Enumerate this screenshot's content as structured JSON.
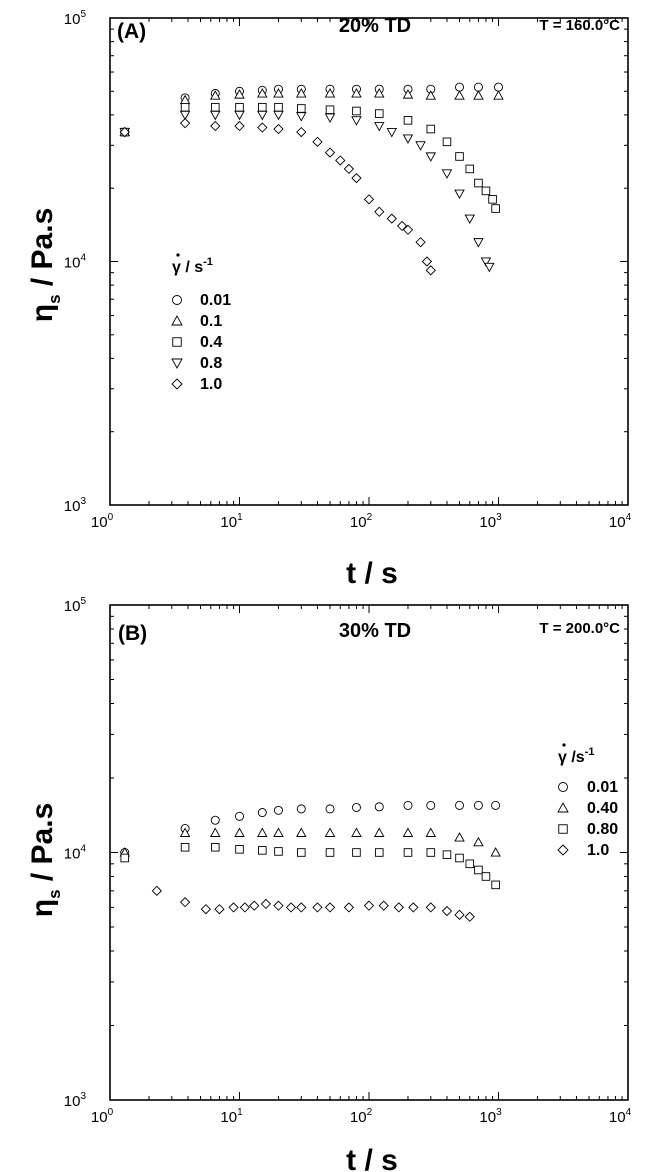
{
  "chart_data": [
    {
      "type": "scatter",
      "panel_label": "(A)",
      "title": "20% TD",
      "temperature_label": "T = 160.0°C",
      "xlabel": "t / s",
      "ylabel": "η_s / Pa.s",
      "ylabel_main": "η",
      "ylabel_sub": "s",
      "ylabel_rest": " / Pa.s",
      "x_scale": "log",
      "y_scale": "log",
      "xlim": [
        1,
        10000
      ],
      "ylim": [
        1000,
        100000
      ],
      "x_ticks": [
        {
          "base": "10",
          "exp": "0",
          "value": 1
        },
        {
          "base": "10",
          "exp": "1",
          "value": 10
        },
        {
          "base": "10",
          "exp": "2",
          "value": 100
        },
        {
          "base": "10",
          "exp": "3",
          "value": 1000
        },
        {
          "base": "10",
          "exp": "4",
          "value": 10000
        }
      ],
      "y_ticks": [
        {
          "base": "10",
          "exp": "3",
          "value": 1000
        },
        {
          "base": "10",
          "exp": "4",
          "value": 10000
        },
        {
          "base": "10",
          "exp": "5",
          "value": 100000
        }
      ],
      "legend_title": "γ̇ / s⁻¹",
      "legend_title_main": "γ",
      "legend_title_rest": " / s",
      "legend_title_exp": "-1",
      "legend_position": "center-left",
      "series": [
        {
          "name": "0.01",
          "marker": "circle",
          "x": [
            1.3,
            3.8,
            6.5,
            10,
            15,
            20,
            30,
            50,
            80,
            120,
            200,
            300,
            500,
            700,
            1000
          ],
          "y": [
            34000,
            47000,
            49000,
            50000,
            50500,
            51000,
            51000,
            51000,
            51000,
            51000,
            51000,
            51000,
            52000,
            52000,
            52000
          ]
        },
        {
          "name": "0.1",
          "marker": "triangle-up",
          "x": [
            1.3,
            3.8,
            6.5,
            10,
            15,
            20,
            30,
            50,
            80,
            120,
            200,
            300,
            500,
            700,
            1000
          ],
          "y": [
            34000,
            46000,
            48000,
            48500,
            49000,
            49000,
            49000,
            49000,
            49000,
            49000,
            48500,
            48000,
            48000,
            48000,
            48000
          ]
        },
        {
          "name": "0.4",
          "marker": "square",
          "x": [
            1.3,
            3.8,
            6.5,
            10,
            15,
            20,
            30,
            50,
            80,
            120,
            200,
            300,
            400,
            500,
            600,
            700,
            800,
            900,
            950
          ],
          "y": [
            34000,
            43000,
            43000,
            43000,
            43000,
            43000,
            42500,
            42000,
            41500,
            40500,
            38000,
            35000,
            31000,
            27000,
            24000,
            21000,
            19500,
            18000,
            16500
          ]
        },
        {
          "name": "0.8",
          "marker": "triangle-down",
          "x": [
            1.3,
            3.8,
            6.5,
            10,
            15,
            20,
            30,
            50,
            80,
            120,
            150,
            200,
            250,
            300,
            400,
            500,
            600,
            700,
            800,
            850
          ],
          "y": [
            34000,
            40000,
            40000,
            40000,
            40000,
            40000,
            39500,
            39000,
            38000,
            36000,
            34000,
            32000,
            30000,
            27000,
            23000,
            19000,
            15000,
            12000,
            10000,
            9500
          ]
        },
        {
          "name": "1.0",
          "marker": "diamond",
          "x": [
            1.3,
            3.8,
            6.5,
            10,
            15,
            20,
            30,
            40,
            50,
            60,
            70,
            80,
            100,
            120,
            150,
            180,
            200,
            250,
            280,
            300
          ],
          "y": [
            34000,
            37000,
            36000,
            36000,
            35500,
            35000,
            34000,
            31000,
            28000,
            26000,
            24000,
            22000,
            18000,
            16000,
            15000,
            14000,
            13500,
            12000,
            10000,
            9200
          ]
        }
      ]
    },
    {
      "type": "scatter",
      "panel_label": "(B)",
      "title": "30% TD",
      "temperature_label": "T = 200.0°C",
      "xlabel": "t / s",
      "ylabel": "η_s / Pa.s",
      "ylabel_main": "η",
      "ylabel_sub": "s",
      "ylabel_rest": " / Pa.s",
      "x_scale": "log",
      "y_scale": "log",
      "xlim": [
        1,
        10000
      ],
      "ylim": [
        1000,
        100000
      ],
      "x_ticks": [
        {
          "base": "10",
          "exp": "0",
          "value": 1
        },
        {
          "base": "10",
          "exp": "1",
          "value": 10
        },
        {
          "base": "10",
          "exp": "2",
          "value": 100
        },
        {
          "base": "10",
          "exp": "3",
          "value": 1000
        },
        {
          "base": "10",
          "exp": "4",
          "value": 10000
        }
      ],
      "y_ticks": [
        {
          "base": "10",
          "exp": "3",
          "value": 1000
        },
        {
          "base": "10",
          "exp": "4",
          "value": 10000
        },
        {
          "base": "10",
          "exp": "5",
          "value": 100000
        }
      ],
      "legend_title": "γ̇ /s⁻¹",
      "legend_title_main": "γ",
      "legend_title_rest": " /s",
      "legend_title_exp": "-1",
      "legend_position": "center-right",
      "series": [
        {
          "name": "0.01",
          "marker": "circle",
          "x": [
            1.3,
            3.8,
            6.5,
            10,
            15,
            20,
            30,
            50,
            80,
            120,
            200,
            300,
            500,
            700,
            950
          ],
          "y": [
            10000,
            12500,
            13500,
            14000,
            14500,
            14800,
            15000,
            15000,
            15200,
            15300,
            15500,
            15500,
            15500,
            15500,
            15500
          ]
        },
        {
          "name": "0.40",
          "marker": "triangle-up",
          "x": [
            1.3,
            3.8,
            6.5,
            10,
            15,
            20,
            30,
            50,
            80,
            120,
            200,
            300,
            500,
            700,
            950
          ],
          "y": [
            10000,
            12000,
            12000,
            12000,
            12000,
            12000,
            12000,
            12000,
            12000,
            12000,
            12000,
            12000,
            11500,
            11000,
            10000
          ]
        },
        {
          "name": "0.80",
          "marker": "square",
          "x": [
            1.3,
            3.8,
            6.5,
            10,
            15,
            20,
            30,
            50,
            80,
            120,
            200,
            300,
            400,
            500,
            600,
            700,
            800,
            950
          ],
          "y": [
            9500,
            10500,
            10500,
            10300,
            10200,
            10100,
            10000,
            10000,
            10000,
            10000,
            10000,
            10000,
            9800,
            9500,
            9000,
            8500,
            8000,
            7400
          ]
        },
        {
          "name": "1.0",
          "marker": "diamond",
          "x": [
            2.3,
            3.8,
            5.5,
            7,
            9,
            11,
            13,
            16,
            20,
            25,
            30,
            40,
            50,
            70,
            100,
            130,
            170,
            220,
            300,
            400,
            500,
            600
          ],
          "y": [
            7000,
            6300,
            5900,
            5900,
            6000,
            6000,
            6100,
            6200,
            6100,
            6000,
            6000,
            6000,
            6000,
            6000,
            6100,
            6100,
            6000,
            6000,
            6000,
            5800,
            5600,
            5500
          ]
        }
      ]
    }
  ]
}
